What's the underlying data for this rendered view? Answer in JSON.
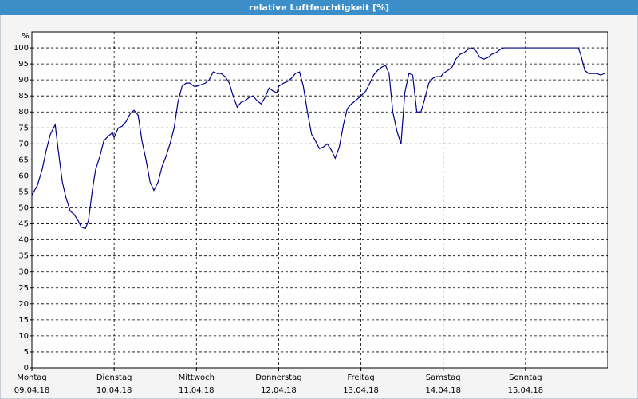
{
  "chart_data": {
    "type": "line",
    "title": "relative Luftfeuchtigkeit [%]",
    "y_label": "%",
    "x": [
      0,
      1.6,
      3.0,
      4.2,
      5.4,
      6.8,
      7.7,
      8.9,
      10.0,
      11.2,
      12.3,
      13.5,
      14.4,
      15.6,
      16.5,
      17.7,
      18.6,
      19.8,
      21.0,
      22.4,
      23.5,
      24,
      25.2,
      26.3,
      27.5,
      28.7,
      29.8,
      31.0,
      32.1,
      33.3,
      34.5,
      35.6,
      36.8,
      38.0,
      39.1,
      40.3,
      41.5,
      42.6,
      43.8,
      45.0,
      46.1,
      47.3,
      48,
      49.4,
      50.6,
      51.7,
      52.9,
      54.1,
      55.2,
      56.4,
      57.6,
      58.7,
      59.9,
      61.0,
      62.2,
      63.4,
      64.5,
      65.7,
      66.9,
      68.0,
      69.2,
      70.4,
      71.5,
      72,
      73.4,
      74.6,
      75.7,
      76.9,
      78.1,
      79.2,
      80.4,
      81.6,
      82.7,
      83.9,
      85.0,
      86.2,
      87.4,
      88.5,
      89.7,
      90.9,
      92.0,
      93.2,
      94.4,
      95.5,
      96,
      97.4,
      98.6,
      99.7,
      100.9,
      102.1,
      103.2,
      104.2,
      105.3,
      106.5,
      107.7,
      108.8,
      110.0,
      111.1,
      112.3,
      113.5,
      114.6,
      115.8,
      117.0,
      118.1,
      119.3,
      120,
      121.4,
      122.6,
      123.7,
      124.9,
      126.1,
      127.2,
      128.4,
      129.6,
      130.7,
      131.9,
      133.1,
      134.2,
      135.4,
      136.6,
      137.7,
      149,
      159.4,
      160.1,
      161.3,
      162.4,
      163.6,
      164.8,
      165.9,
      167.1
    ],
    "series": [
      {
        "name": "relative Luftfeuchtigkeit",
        "color": "#00008b",
        "values": [
          54,
          57,
          62,
          68,
          73,
          76,
          68,
          58,
          53,
          49,
          48,
          46,
          44,
          43.5,
          46,
          56,
          62,
          66,
          71,
          72.5,
          73.5,
          72,
          75,
          75.5,
          77,
          79.5,
          80.5,
          79,
          71,
          65,
          58,
          55.5,
          58,
          63,
          66,
          70,
          75,
          83,
          88,
          89,
          89,
          88,
          88,
          88.5,
          89,
          90,
          92.5,
          92,
          92,
          91,
          89,
          85,
          81.5,
          83,
          83.5,
          84.5,
          85,
          83.5,
          82.5,
          84.5,
          87.5,
          86.5,
          86,
          88,
          89,
          89.5,
          90.5,
          92,
          92.5,
          88,
          80,
          73,
          71,
          68.5,
          69,
          70,
          68,
          65.5,
          69,
          76,
          81,
          82.5,
          83.5,
          84.5,
          85,
          86.5,
          89,
          91.5,
          93,
          94,
          94.5,
          92,
          80,
          74,
          70,
          86,
          92,
          91.5,
          80,
          80,
          84,
          89,
          90.5,
          91,
          91,
          92,
          93,
          94,
          96.5,
          98,
          98.5,
          99.5,
          100,
          99,
          97,
          96.5,
          97,
          98,
          98.5,
          99.5,
          100,
          100,
          100,
          98,
          93,
          92,
          92,
          92,
          91.5,
          92
        ]
      }
    ],
    "xlim": [
      0,
      168
    ],
    "xticks": [
      {
        "value": 0,
        "label": "Montag",
        "date": "09.04.18"
      },
      {
        "value": 24,
        "label": "Dienstag",
        "date": "10.04.18"
      },
      {
        "value": 48,
        "label": "Mittwoch",
        "date": "11.04.18"
      },
      {
        "value": 72,
        "label": "Donnerstag",
        "date": "12.04.18"
      },
      {
        "value": 96,
        "label": "Freitag",
        "date": "13.04.18"
      },
      {
        "value": 120,
        "label": "Samstag",
        "date": "14.04.18"
      },
      {
        "value": 144,
        "label": "Sonntag",
        "date": "15.04.18"
      }
    ],
    "ylim": [
      0,
      105
    ],
    "yticks": [
      0,
      5,
      10,
      15,
      20,
      25,
      30,
      35,
      40,
      45,
      50,
      55,
      60,
      65,
      70,
      75,
      80,
      85,
      90,
      95,
      100
    ],
    "grid": true
  }
}
